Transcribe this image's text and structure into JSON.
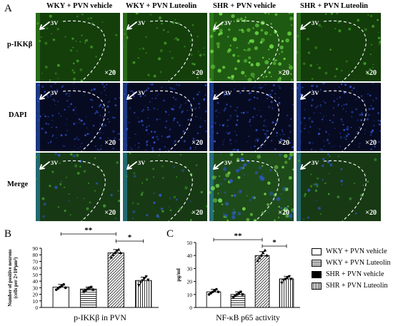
{
  "figure": {
    "panel_a_letter": "A",
    "panel_b_letter": "B",
    "panel_c_letter": "C",
    "columns": [
      "WKY + PVN vehicle",
      "WKY + PVN Luteolin",
      "SHR + PVN vehicle",
      "SHR + PVN Luteolin"
    ],
    "rows": [
      "p-IKKβ",
      "DAPI",
      "Merge"
    ],
    "magnification": "×20",
    "ventricle_label": "3V"
  },
  "legend": {
    "items": [
      {
        "label": "WKY + PVN vehicle",
        "pattern": "white"
      },
      {
        "label": "WKY + PVN Luteolin",
        "pattern": "hhatch"
      },
      {
        "label": "SHR + PVN vehicle",
        "pattern": "black"
      },
      {
        "label": "SHR + PVN Luteolin",
        "pattern": "vhatch"
      }
    ]
  },
  "chart_data": [
    {
      "type": "bar",
      "panel": "B",
      "categories": [
        "WKY + PVN vehicle",
        "WKY + PVN Luteolin",
        "SHR + PVN vehicle",
        "SHR + PVN Luteolin"
      ],
      "values": [
        31,
        28,
        83,
        41
      ],
      "errors": [
        4,
        3,
        5,
        5
      ],
      "points": [
        [
          27,
          29,
          31,
          33,
          35,
          30
        ],
        [
          24,
          26,
          28,
          30,
          31,
          27
        ],
        [
          76,
          80,
          83,
          86,
          88,
          83
        ],
        [
          34,
          38,
          41,
          44,
          47,
          42
        ]
      ],
      "ylim": [
        0,
        90
      ],
      "yticks": [
        0,
        10,
        20,
        30,
        40,
        50,
        60,
        70,
        80,
        90
      ],
      "ylabel_line1": "Number of positive neurons",
      "ylabel_line2": "(cells per 2×10⁴μm²)",
      "xlabel": "p-IKKβ in PVN",
      "significance": [
        {
          "from": 0,
          "to": 2,
          "label": "**"
        },
        {
          "from": 2,
          "to": 3,
          "label": "*"
        }
      ]
    },
    {
      "type": "bar",
      "panel": "C",
      "categories": [
        "WKY + PVN vehicle",
        "WKY + PVN Luteolin",
        "SHR + PVN vehicle",
        "SHR + PVN Luteolin"
      ],
      "values": [
        12,
        10,
        40,
        22
      ],
      "errors": [
        2,
        2,
        3,
        2
      ],
      "points": [
        [
          10,
          11,
          12,
          13,
          14,
          12
        ],
        [
          8,
          9,
          10,
          11,
          12,
          10
        ],
        [
          36,
          38,
          40,
          42,
          44,
          40
        ],
        [
          19,
          21,
          22,
          23,
          24,
          22
        ]
      ],
      "ylim": [
        0,
        50
      ],
      "yticks": [
        0,
        10,
        20,
        30,
        40,
        50
      ],
      "ylabel": "pg/ml",
      "xlabel": "NF-κB p65 activity",
      "significance": [
        {
          "from": 0,
          "to": 2,
          "label": "**"
        },
        {
          "from": 2,
          "to": 3,
          "label": "*"
        }
      ]
    }
  ]
}
